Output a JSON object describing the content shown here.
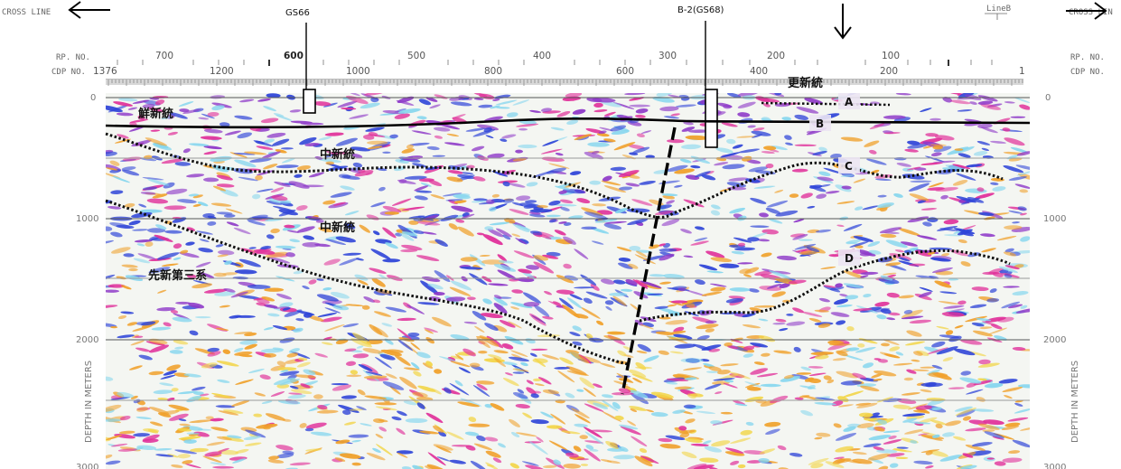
{
  "header": {
    "left_label": "CROSS LINE",
    "right_label": "CROSS LIN",
    "line_tag": "LineB",
    "rp_label": "RP. NO.",
    "cdp_label": "CDP NO.",
    "well_gs66": "GS66",
    "well_b2": "B-2(GS68)"
  },
  "rp_ticks": [
    "700",
    "600",
    "500",
    "400",
    "300",
    "200",
    "100"
  ],
  "cdp_ticks": [
    "1376",
    "1200",
    "1000",
    "800",
    "600",
    "400",
    "200",
    "1"
  ],
  "depth_ticks": [
    "0",
    "1000",
    "2000",
    "3000"
  ],
  "depth_axis_label": "DEPTH IN METERS",
  "formations": {
    "pleistocene": "更新統",
    "pliocene": "鮮新統",
    "miocene_upper": "中新統",
    "miocene_lower": "中新統",
    "pre_neogene": "先新第三系"
  },
  "horizons": [
    "A",
    "B",
    "C",
    "D"
  ],
  "colors": {
    "magenta": "#e0309a",
    "purple": "#8e39c8",
    "blue": "#2f45d8",
    "orange": "#f0a02a",
    "yellow": "#f2d548",
    "cyan": "#86d6ee"
  }
}
